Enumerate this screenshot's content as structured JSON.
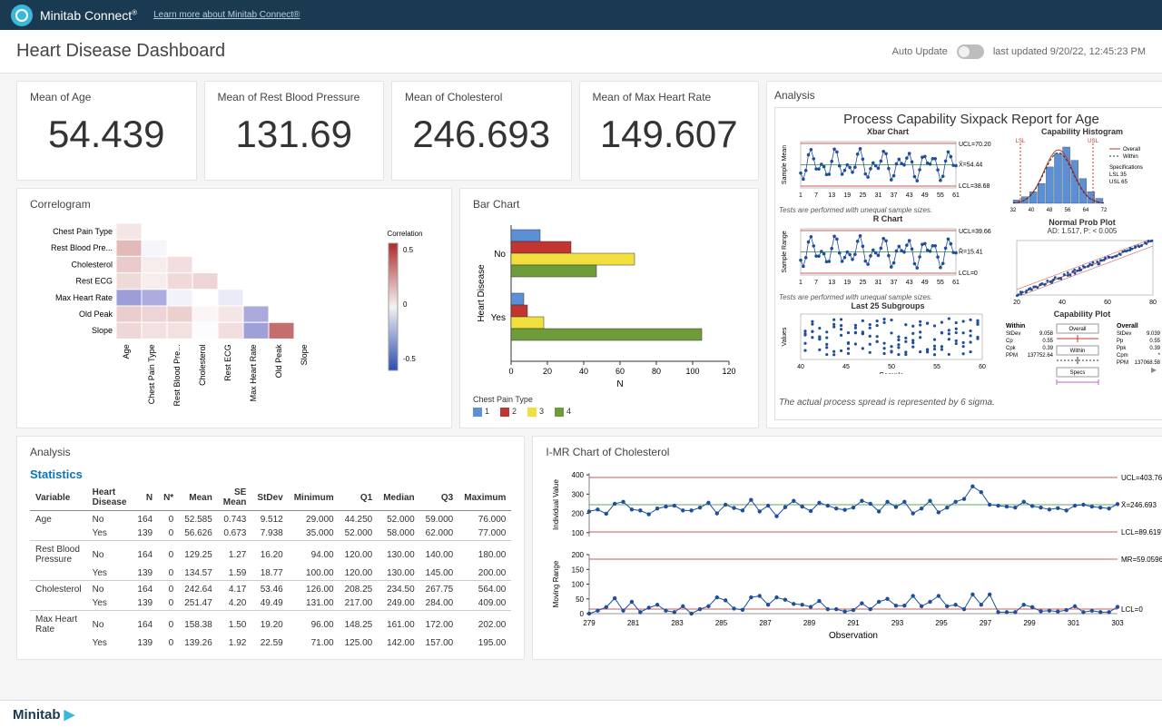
{
  "topbar": {
    "product": "Minitab Connect",
    "link": "Learn more about Minitab Connect®"
  },
  "header": {
    "title": "Heart Disease Dashboard",
    "autoUpdate": "Auto Update",
    "lastUpdated": "last updated 9/20/22, 12:45:23 PM"
  },
  "kpis": [
    {
      "label": "Mean of Age",
      "value": "54.439"
    },
    {
      "label": "Mean of Rest Blood Pressure",
      "value": "131.69"
    },
    {
      "label": "Mean of Cholesterol",
      "value": "246.693"
    },
    {
      "label": "Mean of Max Heart Rate",
      "value": "149.607"
    }
  ],
  "analysisTitle": "Analysis",
  "sixpack": {
    "title": "Process Capability Sixpack Report for Age",
    "xbar": {
      "title": "Xbar Chart",
      "ucl": "UCL=70.20",
      "mean": "X̄=54.44",
      "lcl": "LCL=38.68",
      "xticks": [
        1,
        7,
        13,
        19,
        25,
        31,
        37,
        43,
        49,
        55,
        61
      ],
      "note": "Tests are performed with unequal sample sizes."
    },
    "rchart": {
      "title": "R Chart",
      "ucl": "UCL=39.66",
      "r": "R̄=15.41",
      "lcl": "LCL=0",
      "xticks": [
        1,
        7,
        13,
        19,
        25,
        31,
        37,
        43,
        49,
        55,
        61
      ],
      "note": "Tests are performed with unequal sample sizes."
    },
    "last25": {
      "title": "Last 25 Subgroups",
      "xlabel": "Sample",
      "xticks": [
        40,
        45,
        50,
        55,
        60
      ]
    },
    "hist": {
      "title": "Capability Histogram",
      "xticks": [
        32,
        40,
        48,
        56,
        64,
        72
      ],
      "legend": [
        "Overall",
        "Within"
      ],
      "specs": {
        "label": "Specifications",
        "lsl": "LSL   35",
        "usl": "USL   65"
      },
      "lslMark": "LSL",
      "uslMark": "USL"
    },
    "prob": {
      "title": "Normal Prob Plot",
      "sub": "AD: 1.517, P: < 0.005",
      "xticks": [
        20,
        40,
        60,
        80
      ]
    },
    "capplot": {
      "title": "Capability Plot",
      "overallLbl": "Overall",
      "withinLbl": "Within",
      "specsLbl": "Specs",
      "within": {
        "StDev": "9.058",
        "Cp": "0.55",
        "Cpk": "0.39",
        "PPM": "137752.64"
      },
      "overall": {
        "StDev": "9.039",
        "Pp": "0.55",
        "Ppk": "0.39",
        "Cpm": "*",
        "PPM": "137068.58"
      }
    },
    "footer": "The actual process spread is represented by 6 sigma."
  },
  "correlogram": {
    "title": "Correlogram",
    "labels": [
      "Age",
      "Chest Pain Type",
      "Rest Blood Pre...",
      "Cholesterol",
      "Rest ECG",
      "Max Heart Rate",
      "Old Peak",
      "Slope"
    ],
    "ylabels": [
      "Chest Pain Type",
      "Rest Blood Pre...",
      "Cholesterol",
      "Rest ECG",
      "Max Heart Rate",
      "Old Peak",
      "Slope"
    ],
    "matrix": [
      [
        0.1
      ],
      [
        0.28,
        -0.04
      ],
      [
        0.21,
        0.07,
        0.13
      ],
      [
        0.15,
        0.07,
        0.15,
        0.17
      ],
      [
        -0.39,
        -0.33,
        -0.05,
        0.0,
        -0.08
      ],
      [
        0.2,
        0.17,
        0.19,
        0.04,
        0.1,
        -0.34
      ],
      [
        0.16,
        0.12,
        0.12,
        -0.01,
        0.13,
        -0.38,
        0.58
      ]
    ],
    "legend": {
      "label": "Correlation",
      "ticks": [
        "0.5",
        "0",
        "-0.5"
      ]
    }
  },
  "barchart": {
    "title": "Bar Chart",
    "ylabel": "Heart Disease",
    "xlabel": "N",
    "xticks": [
      0,
      20,
      40,
      60,
      80,
      100,
      120
    ],
    "legendTitle": "Chest Pain Type",
    "legend": [
      {
        "label": "1",
        "color": "#5b8fd6"
      },
      {
        "label": "2",
        "color": "#c23531"
      },
      {
        "label": "3",
        "color": "#f0df3c"
      },
      {
        "label": "4",
        "color": "#6e9c3a"
      }
    ],
    "groups": [
      {
        "cat": "No",
        "bars": [
          {
            "v": 16,
            "c": "#5b8fd6"
          },
          {
            "v": 33,
            "c": "#c23531"
          },
          {
            "v": 68,
            "c": "#f0df3c"
          },
          {
            "v": 47,
            "c": "#6e9c3a"
          }
        ]
      },
      {
        "cat": "Yes",
        "bars": [
          {
            "v": 7,
            "c": "#5b8fd6"
          },
          {
            "v": 9,
            "c": "#c23531"
          },
          {
            "v": 18,
            "c": "#f0df3c"
          },
          {
            "v": 105,
            "c": "#6e9c3a"
          }
        ]
      }
    ]
  },
  "statsTable": {
    "sectionTitle": "Analysis",
    "heading": "Statistics",
    "columns": [
      "Variable",
      "Heart Disease",
      "N",
      "N*",
      "Mean",
      "SE Mean",
      "StDev",
      "Minimum",
      "Q1",
      "Median",
      "Q3",
      "Maximum"
    ],
    "rows": [
      [
        "Age",
        "No",
        "164",
        "0",
        "52.585",
        "0.743",
        "9.512",
        "29.000",
        "44.250",
        "52.000",
        "59.000",
        "76.000"
      ],
      [
        "",
        "Yes",
        "139",
        "0",
        "56.626",
        "0.673",
        "7.938",
        "35.000",
        "52.000",
        "58.000",
        "62.000",
        "77.000"
      ],
      [
        "Rest Blood Pressure",
        "No",
        "164",
        "0",
        "129.25",
        "1.27",
        "16.20",
        "94.00",
        "120.00",
        "130.00",
        "140.00",
        "180.00"
      ],
      [
        "",
        "Yes",
        "139",
        "0",
        "134.57",
        "1.59",
        "18.77",
        "100.00",
        "120.00",
        "130.00",
        "145.00",
        "200.00"
      ],
      [
        "Cholesterol",
        "No",
        "164",
        "0",
        "242.64",
        "4.17",
        "53.46",
        "126.00",
        "208.25",
        "234.50",
        "267.75",
        "564.00"
      ],
      [
        "",
        "Yes",
        "139",
        "0",
        "251.47",
        "4.20",
        "49.49",
        "131.00",
        "217.00",
        "249.00",
        "284.00",
        "409.00"
      ],
      [
        "Max Heart Rate",
        "No",
        "164",
        "0",
        "158.38",
        "1.50",
        "19.20",
        "96.00",
        "148.25",
        "161.00",
        "172.00",
        "202.00"
      ],
      [
        "",
        "Yes",
        "139",
        "0",
        "139.26",
        "1.92",
        "22.59",
        "71.00",
        "125.00",
        "142.00",
        "157.00",
        "195.00"
      ]
    ]
  },
  "imr": {
    "title": "I-MR Chart of Cholesterol",
    "individual": {
      "ylabel": "Individual Value",
      "yticks": [
        100,
        200,
        300,
        400
      ],
      "ucl": "UCL=403.766",
      "mean": "X̄=246.693",
      "lcl": "LCL=89.6197",
      "values": [
        210,
        220,
        198,
        250,
        260,
        220,
        215,
        195,
        225,
        235,
        240,
        215,
        215,
        230,
        255,
        200,
        245,
        228,
        215,
        270,
        210,
        240,
        185,
        232,
        265,
        235,
        212,
        255,
        240,
        225,
        218,
        230,
        265,
        250,
        210,
        260,
        233,
        260,
        200,
        225,
        265,
        205,
        230,
        260,
        275,
        340,
        310,
        245,
        240,
        235,
        230,
        260,
        238,
        230,
        220,
        227,
        215,
        240,
        245,
        235,
        230,
        225,
        248
      ]
    },
    "moving": {
      "ylabel": "Moving Range",
      "yticks": [
        0,
        50,
        100,
        150,
        200
      ],
      "ucl": "MR=59.0596",
      "lcl": "LCL=0",
      "values": [
        0,
        10,
        22,
        52,
        10,
        40,
        5,
        20,
        30,
        10,
        5,
        25,
        0,
        15,
        25,
        55,
        45,
        17,
        13,
        55,
        60,
        30,
        55,
        47,
        33,
        30,
        23,
        43,
        15,
        15,
        7,
        12,
        35,
        15,
        40,
        50,
        27,
        27,
        60,
        25,
        40,
        60,
        25,
        30,
        15,
        65,
        30,
        65,
        5,
        5,
        5,
        30,
        22,
        8,
        10,
        7,
        12,
        25,
        5,
        10,
        5,
        5,
        23
      ]
    },
    "xlabel": "Observation",
    "xticks": [
      279,
      281,
      283,
      285,
      287,
      289,
      291,
      293,
      295,
      297,
      299,
      301,
      303
    ]
  },
  "footer": {
    "brand": "Minitab"
  },
  "colors": {
    "chartLine": "#1f4e9c",
    "chartPoint": "#1f4e9c",
    "uclLine": "#b02a2a",
    "meanLine": "#2e8b2e",
    "histBar": "#5b8fd6",
    "overallCurve": "#c23531",
    "withinCurve": "#333"
  }
}
